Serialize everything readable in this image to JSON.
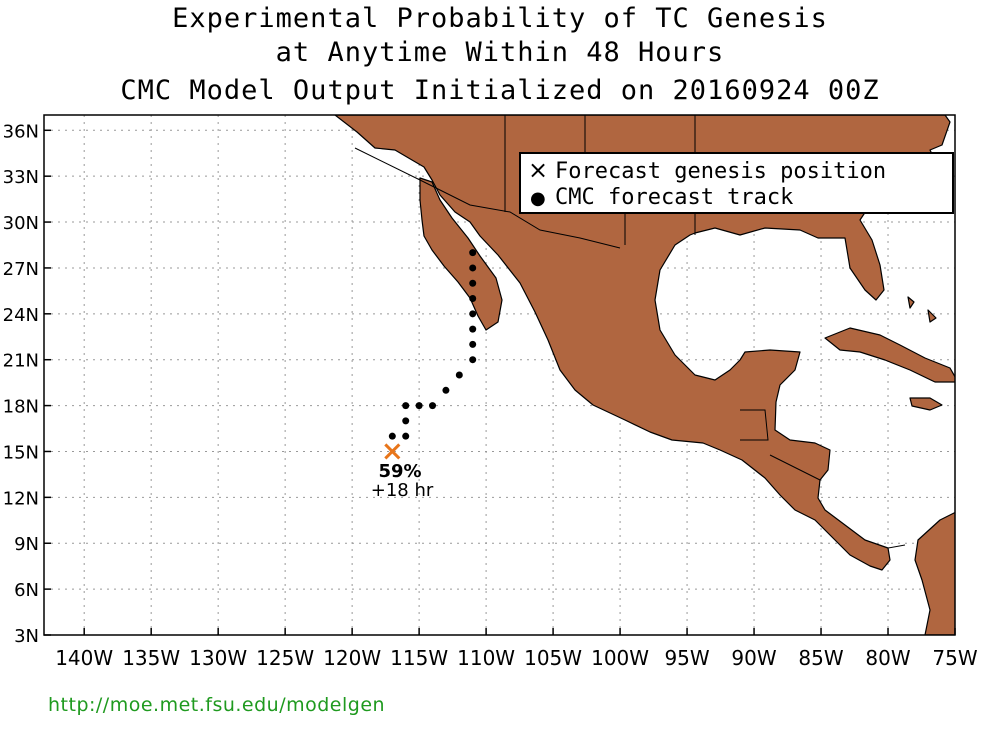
{
  "title": {
    "line1": "Experimental Probability of TC Genesis",
    "line2": "at Anytime Within 48 Hours",
    "line3": "CMC Model Output Initialized on 20160924 00Z"
  },
  "map": {
    "lon_range": [
      -143,
      -75
    ],
    "lat_range": [
      3,
      37
    ],
    "lon_ticks": [
      -140,
      -135,
      -130,
      -125,
      -120,
      -115,
      -110,
      -105,
      -100,
      -95,
      -90,
      -85,
      -80,
      -75
    ],
    "lon_tick_labels": [
      "140W",
      "135W",
      "130W",
      "125W",
      "120W",
      "115W",
      "110W",
      "105W",
      "100W",
      "95W",
      "90W",
      "85W",
      "80W",
      "75W"
    ],
    "lat_ticks": [
      3,
      6,
      9,
      12,
      15,
      18,
      21,
      24,
      27,
      30,
      33,
      36
    ],
    "lat_tick_labels": [
      "3N",
      "6N",
      "9N",
      "12N",
      "15N",
      "18N",
      "21N",
      "24N",
      "27N",
      "30N",
      "33N",
      "36N"
    ],
    "grid": "dotted",
    "land_color": "#b06640",
    "ocean_color": "#ffffff"
  },
  "legend": {
    "placement": "top-right",
    "items": [
      {
        "symbol": "×",
        "label": "Forecast genesis position"
      },
      {
        "symbol": "●",
        "label": "CMC forecast track"
      }
    ]
  },
  "genesis": {
    "lon": -117,
    "lat": 15,
    "probability": "59%",
    "lead_time": "+18 hr",
    "color": "#e8751a"
  },
  "track": [
    [
      -117,
      16
    ],
    [
      -116,
      16
    ],
    [
      -116,
      17
    ],
    [
      -116,
      18
    ],
    [
      -115,
      18
    ],
    [
      -114,
      18
    ],
    [
      -113,
      19
    ],
    [
      -112,
      20
    ],
    [
      -111,
      21
    ],
    [
      -111,
      22
    ],
    [
      -111,
      23
    ],
    [
      -111,
      24
    ],
    [
      -111,
      25
    ],
    [
      -111,
      26
    ],
    [
      -111,
      27
    ],
    [
      -111,
      28
    ]
  ],
  "footer": "http://moe.met.fsu.edu/modelgen"
}
